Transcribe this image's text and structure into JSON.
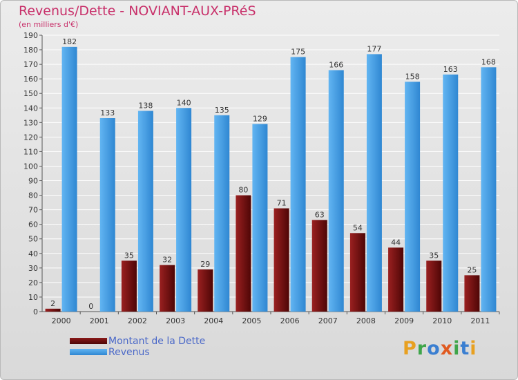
{
  "header": {
    "title": "Revenus/Dette - NOVIANT-AUX-PRéS",
    "subtitle": "(en milliers d'€)"
  },
  "legend": {
    "items": [
      {
        "label": "Montant de la Dette",
        "color": "#6b0d0d"
      },
      {
        "label": "Revenus",
        "color": "#4aa3e8"
      }
    ]
  },
  "logo": {
    "text": "Proxiti",
    "letters": [
      "P",
      "r",
      "o",
      "x",
      "i",
      "t",
      "i"
    ],
    "colors": [
      "#e8a020",
      "#3fa54a",
      "#3b7fd1",
      "#e05a20",
      "#3fa54a",
      "#3b7fd1",
      "#e8a020"
    ]
  },
  "chart_data": {
    "type": "bar",
    "title": "Revenus/Dette - NOVIANT-AUX-PRéS",
    "ylabel": "(en milliers d'€)",
    "xlabel": "",
    "categories": [
      "2000",
      "2001",
      "2002",
      "2003",
      "2004",
      "2005",
      "2006",
      "2007",
      "2008",
      "2009",
      "2010",
      "2011"
    ],
    "series": [
      {
        "name": "Montant de la Dette",
        "values": [
          2,
          0,
          35,
          32,
          29,
          80,
          71,
          63,
          54,
          44,
          35,
          25
        ],
        "color": "#6b0d0d"
      },
      {
        "name": "Revenus",
        "values": [
          182,
          133,
          138,
          140,
          135,
          129,
          175,
          166,
          177,
          158,
          163,
          168
        ],
        "color": "#4aa3e8"
      }
    ],
    "ylim": [
      0,
      190
    ],
    "yticks": [
      0,
      10,
      20,
      30,
      40,
      50,
      60,
      70,
      80,
      90,
      100,
      110,
      120,
      130,
      140,
      150,
      160,
      170,
      180,
      190
    ],
    "grid": true,
    "legend_position": "bottom-left"
  }
}
